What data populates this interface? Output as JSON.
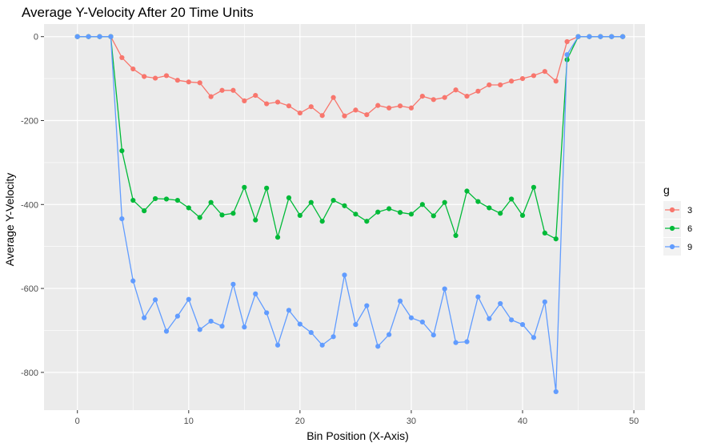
{
  "chart_data": {
    "type": "line",
    "title": "Average Y-Velocity After 20 Time Units",
    "xlabel": "Bin Position (X-Axis)",
    "ylabel": "Average Y-Velocity",
    "xlim": [
      -3,
      51
    ],
    "ylim": [
      -890,
      30
    ],
    "x_ticks": [
      0,
      10,
      20,
      30,
      40,
      50
    ],
    "y_ticks": [
      0,
      -200,
      -400,
      -600,
      -800
    ],
    "grid": true,
    "legend": {
      "title": "g",
      "position": "right"
    },
    "x": [
      0,
      1,
      2,
      3,
      4,
      5,
      6,
      7,
      8,
      9,
      10,
      11,
      12,
      13,
      14,
      15,
      16,
      17,
      18,
      19,
      20,
      21,
      22,
      23,
      24,
      25,
      26,
      27,
      28,
      29,
      30,
      31,
      32,
      33,
      34,
      35,
      36,
      37,
      38,
      39,
      40,
      41,
      42,
      43,
      44,
      45,
      46,
      47,
      48,
      49
    ],
    "series": [
      {
        "name": "3",
        "color": "#F8766D",
        "values": [
          0,
          0,
          0,
          0,
          -50,
          -77,
          -95,
          -99,
          -93,
          -104,
          -108,
          -110,
          -143,
          -128,
          -128,
          -153,
          -140,
          -160,
          -156,
          -165,
          -182,
          -167,
          -188,
          -145,
          -189,
          -175,
          -186,
          -164,
          -170,
          -165,
          -170,
          -142,
          -150,
          -145,
          -127,
          -142,
          -130,
          -115,
          -115,
          -106,
          -100,
          -93,
          -83,
          -106,
          -12,
          0,
          0,
          0,
          0,
          0
        ]
      },
      {
        "name": "6",
        "color": "#00BA38",
        "values": [
          0,
          0,
          0,
          0,
          -272,
          -390,
          -415,
          -386,
          -387,
          -390,
          -408,
          -431,
          -395,
          -425,
          -421,
          -359,
          -437,
          -361,
          -478,
          -384,
          -426,
          -395,
          -440,
          -390,
          -403,
          -423,
          -440,
          -418,
          -410,
          -419,
          -423,
          -400,
          -427,
          -395,
          -474,
          -368,
          -393,
          -408,
          -421,
          -387,
          -426,
          -359,
          -468,
          -482,
          -55,
          0,
          0,
          0,
          0,
          0
        ]
      },
      {
        "name": "9",
        "color": "#619CFF",
        "values": [
          0,
          0,
          0,
          0,
          -434,
          -582,
          -670,
          -627,
          -702,
          -666,
          -626,
          -698,
          -678,
          -690,
          -590,
          -692,
          -613,
          -658,
          -735,
          -652,
          -685,
          -705,
          -735,
          -715,
          -568,
          -686,
          -641,
          -738,
          -710,
          -630,
          -670,
          -680,
          -711,
          -601,
          -729,
          -727,
          -620,
          -672,
          -636,
          -675,
          -686,
          -717,
          -632,
          -846,
          -43,
          0,
          0,
          0,
          0,
          0
        ]
      }
    ]
  }
}
